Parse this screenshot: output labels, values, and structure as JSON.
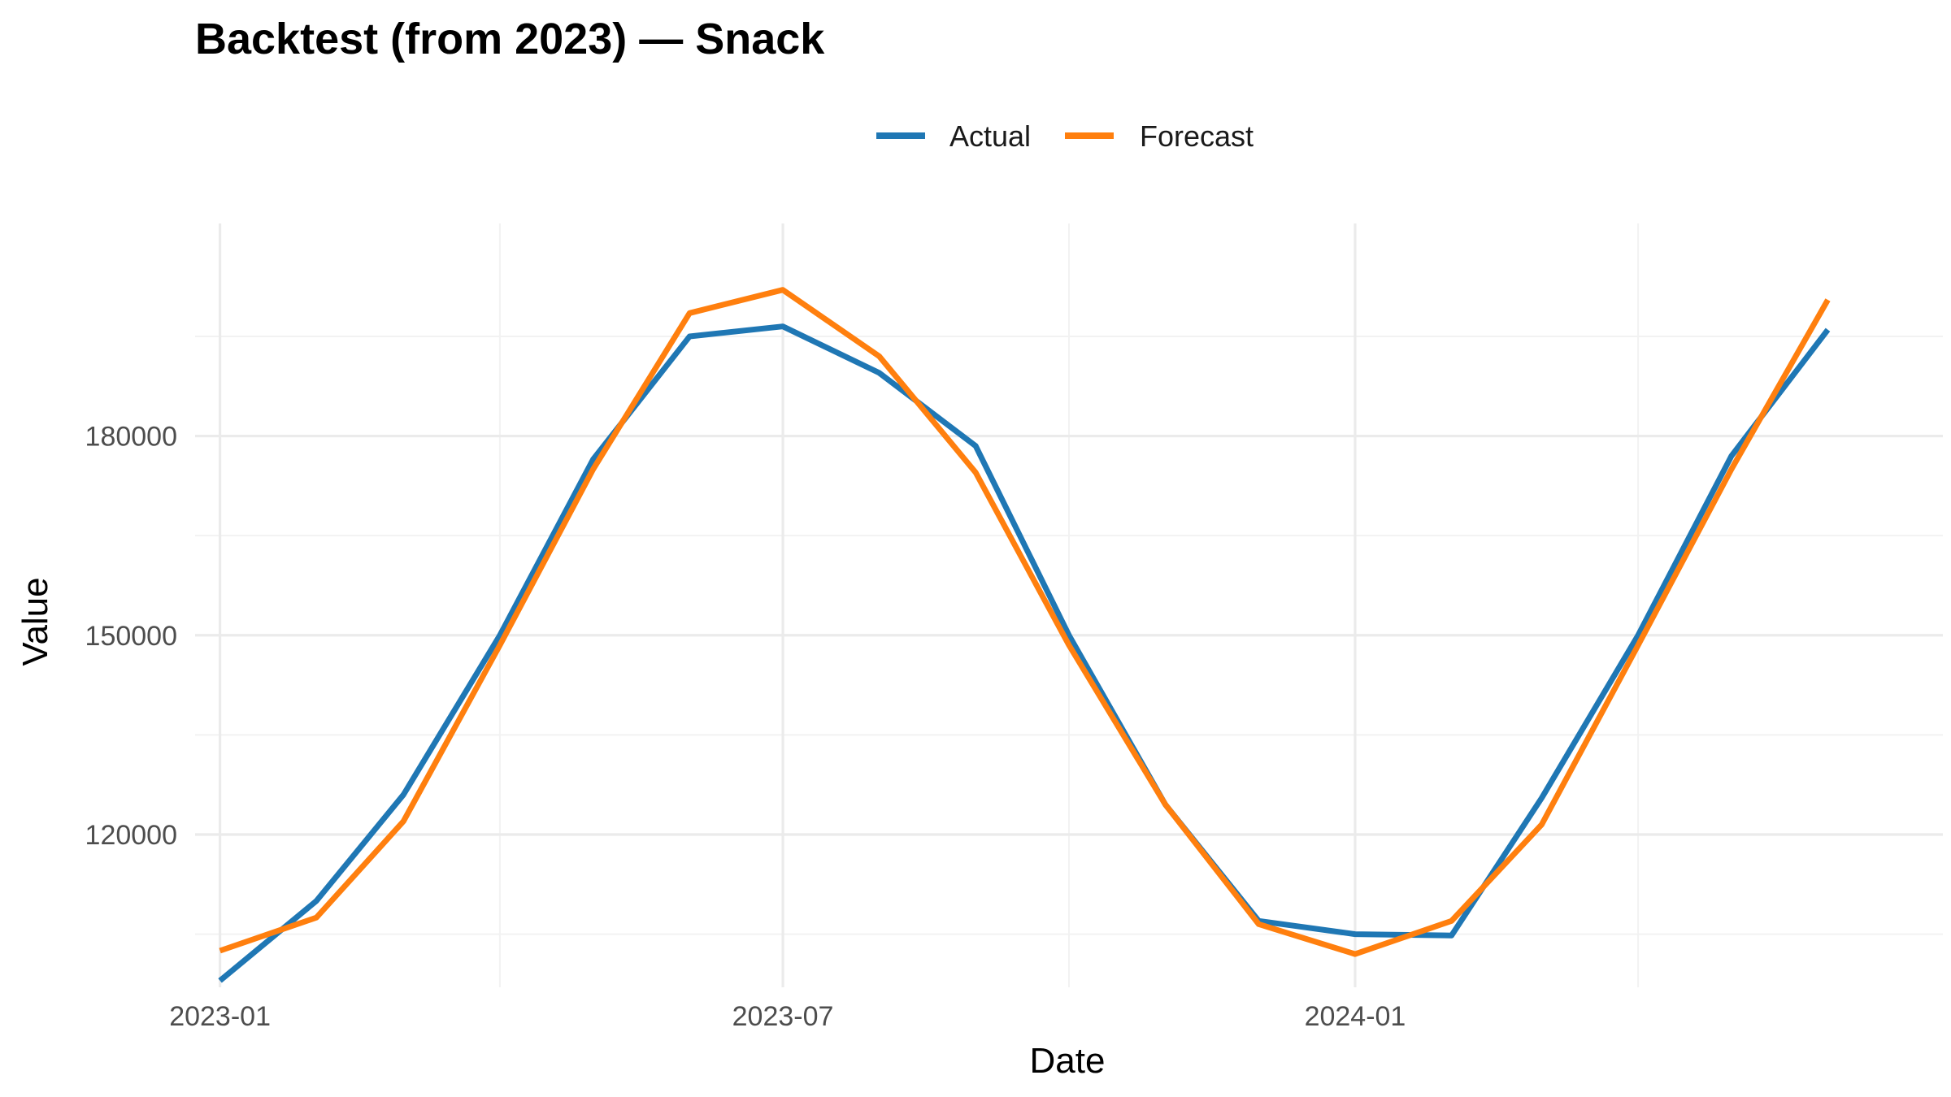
{
  "chart_data": {
    "type": "line",
    "title": "Backtest (from 2023) — Snack",
    "xlabel": "Date",
    "ylabel": "Value",
    "x_tick_labels": [
      "2023-01",
      "2023-07",
      "2024-01"
    ],
    "x_ticks": [
      "2023-01-01",
      "2023-07-01",
      "2024-01-01"
    ],
    "x_minor_ticks": [
      "2023-04-01",
      "2023-10-01",
      "2024-04-01"
    ],
    "y_tick_labels": [
      "120000",
      "150000",
      "180000"
    ],
    "y_ticks": [
      120000,
      150000,
      180000
    ],
    "y_minor_ticks": [
      105000,
      135000,
      165000,
      195000
    ],
    "xlim": [
      "2022-12-24",
      "2024-07-08"
    ],
    "ylim": [
      97000,
      212000
    ],
    "grid": true,
    "legend_position": "top",
    "x": [
      "2023-01-01",
      "2023-02-01",
      "2023-03-01",
      "2023-04-01",
      "2023-05-01",
      "2023-06-01",
      "2023-07-01",
      "2023-08-01",
      "2023-09-01",
      "2023-10-01",
      "2023-11-01",
      "2023-12-01",
      "2024-01-01",
      "2024-02-01",
      "2024-03-01",
      "2024-04-01",
      "2024-05-01",
      "2024-06-01"
    ],
    "series": [
      {
        "name": "Actual",
        "color": "#1f77b4",
        "values": [
          98000,
          110000,
          126000,
          150000,
          176500,
          195000,
          196500,
          189500,
          178500,
          150000,
          124500,
          107000,
          105000,
          104800,
          125500,
          150000,
          177000,
          196000
        ]
      },
      {
        "name": "Forecast",
        "color": "#ff7f0e",
        "values": [
          102500,
          107500,
          122000,
          148500,
          175000,
          198500,
          202000,
          192000,
          174500,
          148500,
          124500,
          106500,
          102000,
          107000,
          121500,
          148500,
          175000,
          200500
        ]
      }
    ]
  }
}
